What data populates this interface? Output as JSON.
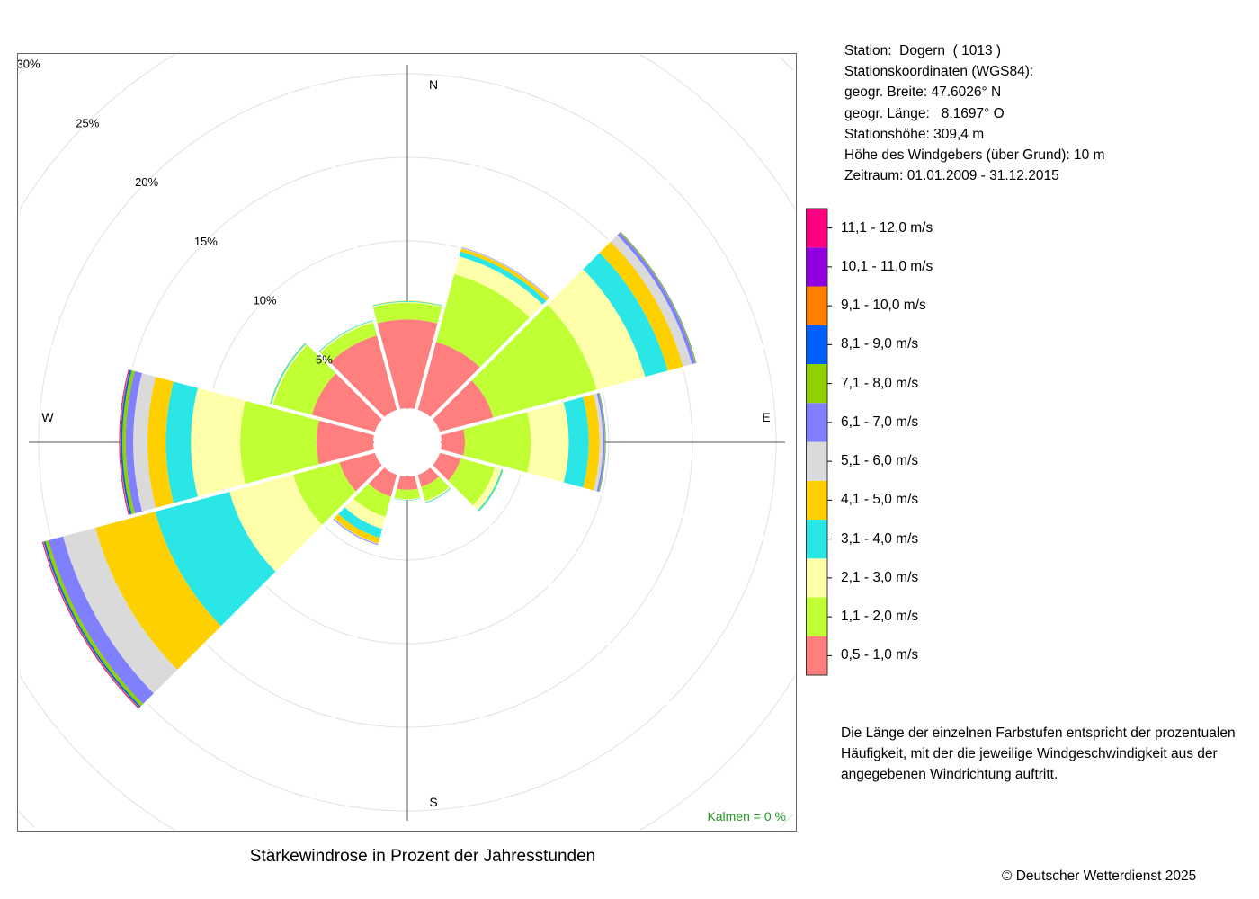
{
  "station": {
    "lines": [
      "Station:  Dogern  ( 1013 )",
      "Stationskoordinaten (WGS84):",
      "geogr. Breite: 47.6026° N",
      "geogr. Länge:   8.1697° O",
      "Stationshöhe: 309,4 m",
      "Höhe des Windgebers (über Grund): 10 m",
      "Zeitraum: 01.01.2009 - 31.12.2015"
    ]
  },
  "description": [
    "Die Länge der einzelnen Farbstufen entspricht der prozentualen",
    "Häufigkeit, mit der die jeweilige Windgeschwindigkeit aus der",
    "angegebenen Windrichtung auftritt."
  ],
  "copyright": "© Deutscher Wetterdienst  2025",
  "chart_data": {
    "type": "windrose",
    "title": "Stärkewindrose in Prozent der Jahresstunden",
    "calm_label": "Kalmen  =  0 %",
    "compass": {
      "N": "N",
      "E": "E",
      "S": "S",
      "W": "W"
    },
    "ring_labels": [
      "5%",
      "10%",
      "15%",
      "20%",
      "25%",
      "30%"
    ],
    "ring_values": [
      5,
      10,
      15,
      20,
      25,
      30
    ],
    "rlim": [
      0,
      30
    ],
    "directions_deg": [
      0,
      30,
      60,
      90,
      120,
      150,
      180,
      210,
      240,
      270,
      300,
      330
    ],
    "classes": [
      {
        "label": "0,5 - 1,0 m/s",
        "color": "#FF7F7F"
      },
      {
        "label": "1,1 - 2,0 m/s",
        "color": "#BFFF33"
      },
      {
        "label": "2,1 - 3,0 m/s",
        "color": "#FFFFAA"
      },
      {
        "label": "3,1 - 4,0 m/s",
        "color": "#2BE6E6"
      },
      {
        "label": "4,1 - 5,0 m/s",
        "color": "#FFD000"
      },
      {
        "label": "5,1 - 6,0 m/s",
        "color": "#DADADA"
      },
      {
        "label": "6,1 - 7,0 m/s",
        "color": "#8080FF"
      },
      {
        "label": "7,1 - 8,0 m/s",
        "color": "#90D000"
      },
      {
        "label": "8,1 - 9,0 m/s",
        "color": "#0060FF"
      },
      {
        "label": "9,1 - 10,0 m/s",
        "color": "#FF8000"
      },
      {
        "label": "10,1 - 11,0 m/s",
        "color": "#9000E0"
      },
      {
        "label": "11,1 - 12,0 m/s",
        "color": "#FF0080"
      }
    ],
    "values_percent": [
      [
        5.3,
        1.0,
        0.05,
        0.05,
        0.02,
        0,
        0,
        0,
        0,
        0,
        0,
        0
      ],
      [
        4.2,
        4.2,
        1.1,
        0.3,
        0.2,
        0.05,
        0.03,
        0,
        0,
        0,
        0,
        0
      ],
      [
        3.3,
        6.4,
        3.0,
        1.4,
        0.95,
        0.55,
        0.2,
        0.05,
        0.02,
        0.01,
        0,
        0
      ],
      [
        1.4,
        3.95,
        2.25,
        1.2,
        0.65,
        0.2,
        0.1,
        0.05,
        0.02,
        0,
        0,
        0
      ],
      [
        1.3,
        2.1,
        0.4,
        0.1,
        0.02,
        0,
        0,
        0,
        0,
        0,
        0,
        0
      ],
      [
        0.75,
        0.85,
        0.1,
        0.05,
        0,
        0,
        0,
        0,
        0,
        0,
        0,
        0
      ],
      [
        0.8,
        0.55,
        0.05,
        0.03,
        0,
        0,
        0,
        0,
        0,
        0,
        0,
        0
      ],
      [
        1.35,
        1.25,
        0.75,
        0.55,
        0.35,
        0.05,
        0.05,
        0,
        0,
        0,
        0,
        0
      ],
      [
        2.2,
        2.85,
        3.95,
        4.6,
        3.7,
        2.0,
        0.9,
        0.2,
        0.1,
        0.05,
        0.03,
        0.02
      ],
      [
        3.4,
        4.55,
        2.95,
        1.5,
        1.1,
        0.85,
        0.45,
        0.2,
        0.1,
        0.05,
        0.03,
        0.02
      ],
      [
        3.9,
        2.4,
        0.1,
        0.08,
        0.02,
        0,
        0,
        0,
        0,
        0,
        0,
        0
      ],
      [
        4.6,
        0.8,
        0.1,
        0.05,
        0,
        0,
        0,
        0,
        0,
        0,
        0,
        0
      ]
    ]
  }
}
